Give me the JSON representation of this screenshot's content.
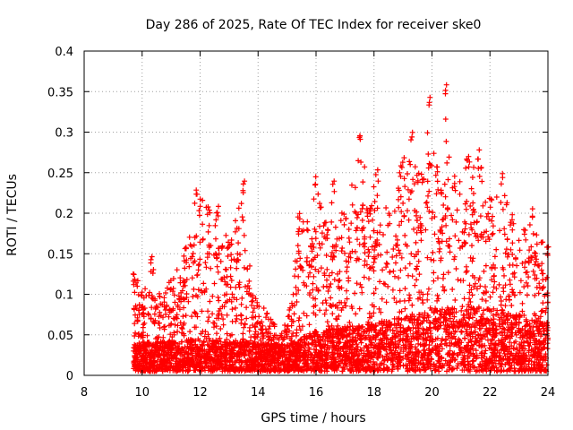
{
  "chart_data": {
    "type": "scatter",
    "title": "Day 286 of 2025, Rate Of TEC Index for receiver ske0",
    "xlabel": "GPS time / hours",
    "ylabel": "ROTI / TECUs",
    "xlim": [
      8,
      24
    ],
    "ylim": [
      0,
      0.4
    ],
    "xticks": [
      "8",
      "10",
      "12",
      "14",
      "16",
      "18",
      "20",
      "22",
      "24"
    ],
    "yticks": [
      "0",
      "0.05",
      "0.1",
      "0.15",
      "0.2",
      "0.25",
      "0.3",
      "0.35",
      "0.4"
    ],
    "grid": true,
    "marker": "+",
    "color": "#ff0000",
    "series": [
      {
        "name": "ske0",
        "x_start": 9.7,
        "x_end": 24.0,
        "density_per_hour": 320,
        "envelope": [
          [
            9.7,
            0.13
          ],
          [
            10.0,
            0.11
          ],
          [
            10.3,
            0.15
          ],
          [
            10.6,
            0.1
          ],
          [
            11.0,
            0.12
          ],
          [
            11.5,
            0.16
          ],
          [
            11.9,
            0.23
          ],
          [
            12.3,
            0.21
          ],
          [
            12.6,
            0.21
          ],
          [
            13.0,
            0.17
          ],
          [
            13.5,
            0.24
          ],
          [
            13.8,
            0.1
          ],
          [
            14.3,
            0.08
          ],
          [
            14.8,
            0.05
          ],
          [
            15.2,
            0.1
          ],
          [
            15.4,
            0.2
          ],
          [
            15.7,
            0.19
          ],
          [
            16.0,
            0.245
          ],
          [
            16.4,
            0.18
          ],
          [
            16.6,
            0.24
          ],
          [
            17.0,
            0.2
          ],
          [
            17.5,
            0.3
          ],
          [
            17.9,
            0.22
          ],
          [
            18.1,
            0.26
          ],
          [
            18.5,
            0.2
          ],
          [
            19.0,
            0.27
          ],
          [
            19.3,
            0.3
          ],
          [
            19.7,
            0.25
          ],
          [
            19.9,
            0.345
          ],
          [
            20.2,
            0.26
          ],
          [
            20.5,
            0.36
          ],
          [
            20.8,
            0.24
          ],
          [
            21.2,
            0.27
          ],
          [
            21.6,
            0.28
          ],
          [
            22.0,
            0.22
          ],
          [
            22.4,
            0.25
          ],
          [
            22.8,
            0.2
          ],
          [
            23.2,
            0.18
          ],
          [
            23.5,
            0.21
          ],
          [
            23.8,
            0.17
          ],
          [
            24.0,
            0.16
          ]
        ],
        "baseline": [
          [
            9.7,
            0.015
          ],
          [
            12.0,
            0.02
          ],
          [
            14.0,
            0.015
          ],
          [
            15.0,
            0.012
          ],
          [
            16.0,
            0.03
          ],
          [
            18.0,
            0.04
          ],
          [
            19.5,
            0.05
          ],
          [
            20.5,
            0.06
          ],
          [
            22.0,
            0.06
          ],
          [
            24.0,
            0.04
          ]
        ]
      }
    ]
  }
}
